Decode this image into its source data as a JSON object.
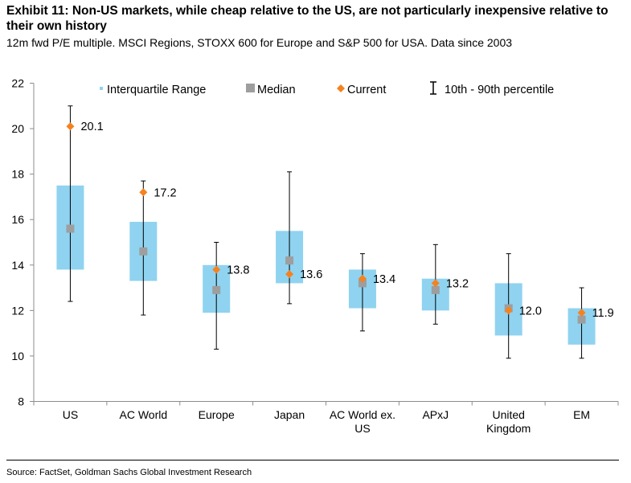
{
  "header": {
    "title": "Exhibit 11: Non-US markets, while cheap relative to the US, are not particularly inexpensive relative to their own history",
    "subtitle": "12m fwd P/E multiple. MSCI Regions, STOXX 600 for Europe and S&P 500 for USA. Data since 2003"
  },
  "footer": {
    "source": "Source: FactSet, Goldman Sachs Global Investment Research"
  },
  "legend": {
    "iqr": "Interquartile Range",
    "median": "Median",
    "current": "Current",
    "percentile": "10th - 90th percentile"
  },
  "colors": {
    "iqr": "#8fd3f0",
    "median": "#9e9e9e",
    "current": "#f58220",
    "whisker": "#000000"
  },
  "chart_data": {
    "type": "box",
    "ylim": [
      8,
      22
    ],
    "yticks": [
      8,
      10,
      12,
      14,
      16,
      18,
      20,
      22
    ],
    "legend_position": "top",
    "categories": [
      {
        "label": [
          "US"
        ],
        "p10": 12.4,
        "q1": 13.8,
        "median": 15.6,
        "q3": 17.5,
        "p90": 21.0,
        "current": 20.1,
        "current_label": "20.1"
      },
      {
        "label": [
          "AC World"
        ],
        "p10": 11.8,
        "q1": 13.3,
        "median": 14.6,
        "q3": 15.9,
        "p90": 17.7,
        "current": 17.2,
        "current_label": "17.2"
      },
      {
        "label": [
          "Europe"
        ],
        "p10": 10.3,
        "q1": 11.9,
        "median": 12.9,
        "q3": 14.0,
        "p90": 15.0,
        "current": 13.8,
        "current_label": "13.8"
      },
      {
        "label": [
          "Japan"
        ],
        "p10": 12.3,
        "q1": 13.2,
        "median": 14.2,
        "q3": 15.5,
        "p90": 18.1,
        "current": 13.6,
        "current_label": "13.6"
      },
      {
        "label": [
          "AC World ex.",
          "US"
        ],
        "p10": 11.1,
        "q1": 12.1,
        "median": 13.2,
        "q3": 13.8,
        "p90": 14.5,
        "current": 13.4,
        "current_label": "13.4"
      },
      {
        "label": [
          "APxJ"
        ],
        "p10": 11.4,
        "q1": 12.0,
        "median": 12.9,
        "q3": 13.4,
        "p90": 14.9,
        "current": 13.2,
        "current_label": "13.2"
      },
      {
        "label": [
          "United",
          "Kingdom"
        ],
        "p10": 9.9,
        "q1": 10.9,
        "median": 12.1,
        "q3": 13.2,
        "p90": 14.5,
        "current": 12.0,
        "current_label": "12.0"
      },
      {
        "label": [
          "EM"
        ],
        "p10": 9.9,
        "q1": 10.5,
        "median": 11.6,
        "q3": 12.1,
        "p90": 13.0,
        "current": 11.9,
        "current_label": "11.9"
      }
    ]
  }
}
